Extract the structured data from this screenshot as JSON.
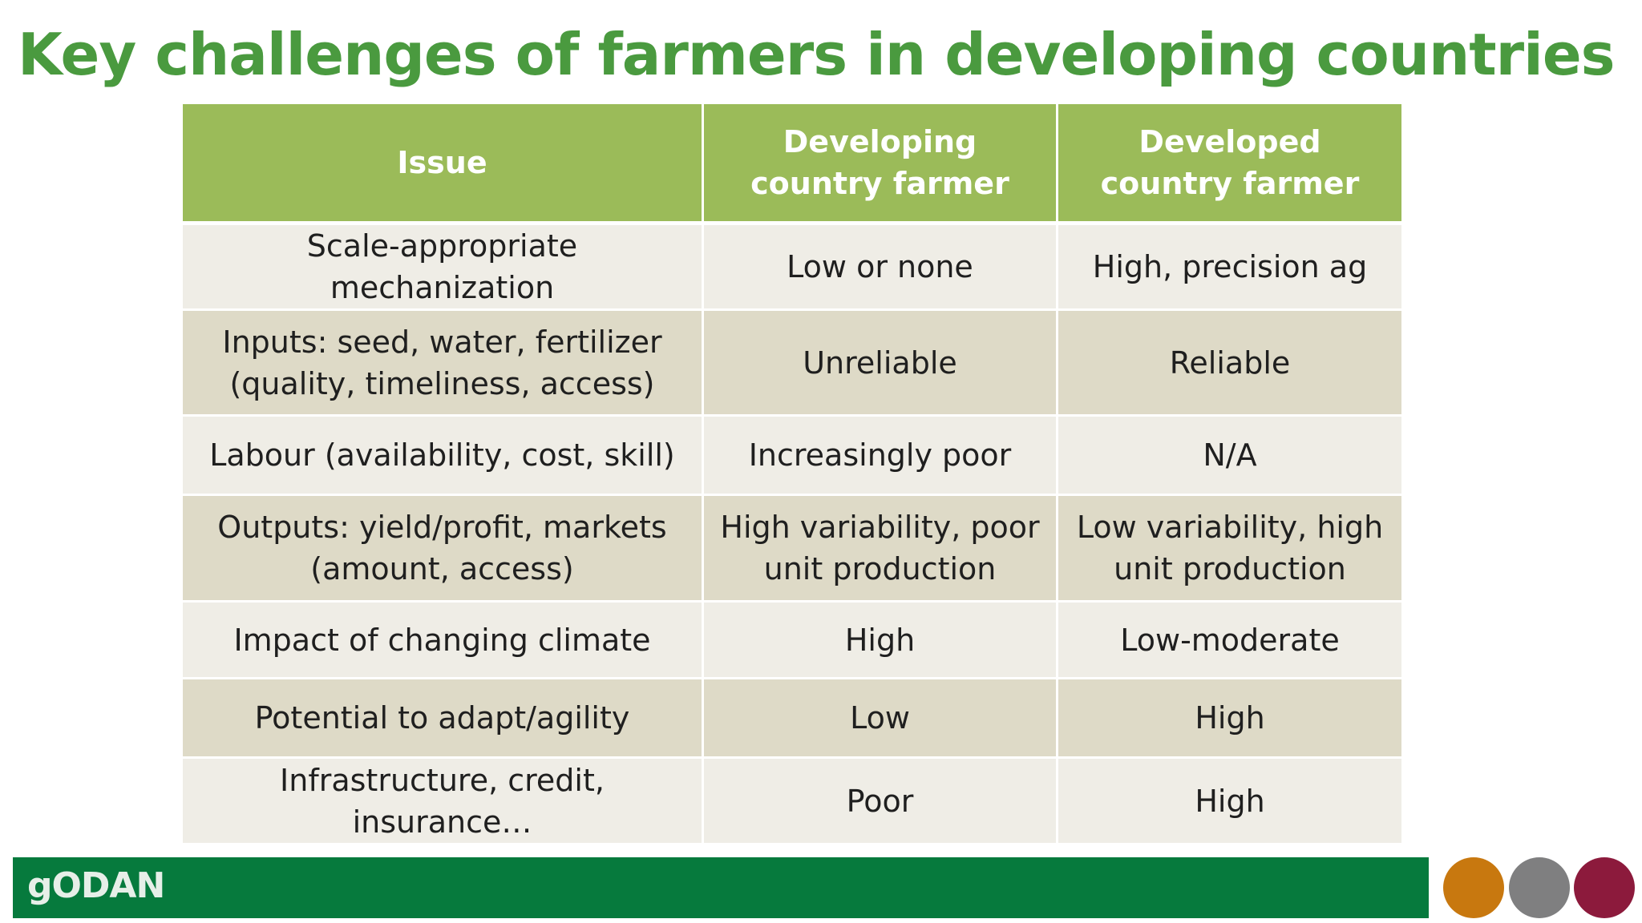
{
  "title": "Key challenges of farmers in developing countries",
  "table": {
    "headers": [
      "Issue",
      "Developing country farmer",
      "Developed country farmer"
    ],
    "rows": [
      [
        "Scale-appropriate mechanization",
        "Low or none",
        "High, precision ag"
      ],
      [
        "Inputs: seed, water, fertilizer (quality, timeliness, access)",
        "Unreliable",
        "Reliable"
      ],
      [
        "Labour (availability, cost, skill)",
        "Increasingly poor",
        "N/A"
      ],
      [
        "Outputs: yield/profit, markets (amount, access)",
        "High variability, poor unit production",
        "Low variability, high unit production"
      ],
      [
        "Impact of changing climate",
        "High",
        "Low-moderate"
      ],
      [
        "Potential to adapt/agility",
        "Low",
        "High"
      ],
      [
        "Infrastructure, credit, insurance…",
        "Poor",
        "High"
      ]
    ]
  },
  "footer": {
    "logo_text": "gODAN",
    "colors": {
      "bar": "#067a3d",
      "dot_orange": "#c8780f",
      "dot_grey": "#7f7f80",
      "dot_red": "#8c1a3c"
    }
  }
}
